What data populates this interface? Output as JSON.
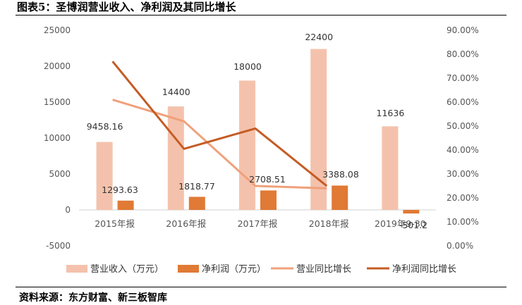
{
  "header": {
    "title": "图表5：圣博润营业收入、净利润及其同比增长"
  },
  "footer": {
    "source": "资料来源：东方财富、新三板智库"
  },
  "colors": {
    "revenue_bar": "#f4c2ac",
    "profit_bar": "#e07a35",
    "revenue_growth_line": "#f0a07a",
    "profit_growth_line": "#c45c24",
    "axis_text": "#555555"
  },
  "chart_data": {
    "type": "bar",
    "categories": [
      "2015年报",
      "2016年报",
      "2017年报",
      "2018年报",
      "2019年Q3"
    ],
    "category_labels": [
      "2015年报",
      "2016年报",
      "2017年报",
      "2018年报",
      "2019年9-30"
    ],
    "series": [
      {
        "name": "营业收入（万元）",
        "type": "bar",
        "axis": "left",
        "values": [
          9458.16,
          14400,
          18000,
          22400,
          11636
        ],
        "labels": [
          "9458.16",
          "14400",
          "18000",
          "22400",
          "11636"
        ]
      },
      {
        "name": "净利润（万元）",
        "type": "bar",
        "axis": "left",
        "values": [
          1293.63,
          1818.77,
          2708.51,
          3388.08,
          -501.2
        ],
        "labels": [
          "1293.63",
          "1818.77",
          "2708.51",
          "3388.08",
          "-501.2"
        ]
      },
      {
        "name": "营业同比增长",
        "type": "line",
        "axis": "right",
        "values": [
          0.61,
          0.52,
          0.25,
          0.24,
          null
        ]
      },
      {
        "name": "净利润同比增长",
        "type": "line",
        "axis": "right",
        "values": [
          0.77,
          0.405,
          0.49,
          0.25,
          null
        ]
      }
    ],
    "y_left": {
      "min": -5000,
      "max": 25000,
      "ticks": [
        25000,
        20000,
        15000,
        10000,
        5000,
        0,
        -5000
      ],
      "tick_labels": [
        "25000",
        "20000",
        "15000",
        "10000",
        "5000",
        "0",
        "-5000"
      ]
    },
    "y_right": {
      "min": 0,
      "max": 0.9,
      "ticks": [
        0.9,
        0.8,
        0.7,
        0.6,
        0.5,
        0.4,
        0.3,
        0.2,
        0.1,
        0
      ],
      "tick_labels": [
        "90.00%",
        "80.00%",
        "70.00%",
        "60.00%",
        "50.00%",
        "40.00%",
        "30.00%",
        "20.00%",
        "10.00%",
        "0.00%"
      ]
    },
    "grid": false,
    "legend_position": "bottom",
    "title": "图表5：圣博润营业收入、净利润及其同比增长"
  }
}
